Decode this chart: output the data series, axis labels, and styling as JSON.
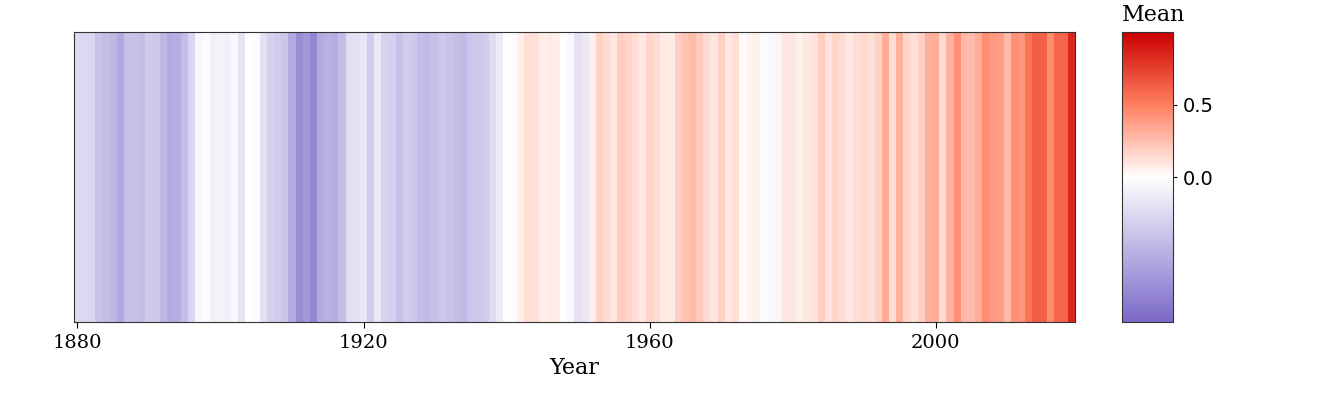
{
  "title": "",
  "xlabel": "Year",
  "ylabel": "",
  "year_start": 1880,
  "colormap_colors": [
    "#8b7ec8",
    "#ffffff",
    "#ff0000"
  ],
  "vmin": -0.5,
  "vcenter": 0.0,
  "vmax": 1.0,
  "colorbar_ticks": [
    0.0,
    0.5
  ],
  "colorbar_label": "Mean",
  "background_color": "#ffffff",
  "grid_color": "#d3d3d3",
  "xticks": [
    1880,
    1920,
    1960,
    2000
  ],
  "tick_fontsize": 14,
  "label_fontsize": 16,
  "anomalies": [
    -0.12,
    -0.13,
    -0.14,
    -0.2,
    -0.22,
    -0.24,
    -0.29,
    -0.21,
    -0.21,
    -0.22,
    -0.17,
    -0.18,
    -0.24,
    -0.28,
    -0.27,
    -0.22,
    -0.14,
    -0.03,
    -0.01,
    -0.05,
    -0.04,
    -0.05,
    -0.02,
    -0.09,
    0.0,
    -0.01,
    -0.1,
    -0.15,
    -0.17,
    -0.19,
    -0.28,
    -0.38,
    -0.34,
    -0.4,
    -0.28,
    -0.26,
    -0.27,
    -0.22,
    -0.11,
    -0.1,
    -0.08,
    -0.17,
    -0.08,
    -0.15,
    -0.16,
    -0.21,
    -0.17,
    -0.18,
    -0.22,
    -0.23,
    -0.21,
    -0.18,
    -0.2,
    -0.22,
    -0.23,
    -0.19,
    -0.18,
    -0.17,
    -0.12,
    -0.07,
    0.0,
    -0.01,
    0.07,
    0.13,
    0.12,
    0.07,
    0.08,
    0.07,
    0.0,
    -0.02,
    -0.09,
    -0.08,
    0.07,
    0.18,
    0.14,
    0.1,
    0.19,
    0.17,
    0.13,
    0.09,
    0.17,
    0.14,
    0.08,
    0.08,
    0.19,
    0.24,
    0.26,
    0.21,
    0.14,
    0.1,
    0.18,
    0.09,
    0.13,
    0.02,
    0.04,
    0.06,
    -0.01,
    -0.02,
    0.04,
    0.1,
    0.1,
    0.06,
    0.09,
    0.11,
    0.2,
    0.11,
    0.17,
    0.14,
    0.09,
    0.13,
    0.15,
    0.12,
    0.18,
    0.32,
    0.14,
    0.31,
    0.16,
    0.12,
    0.18,
    0.31,
    0.32,
    0.14,
    0.3,
    0.43,
    0.27,
    0.26,
    0.32,
    0.45,
    0.4,
    0.39,
    0.27,
    0.43,
    0.41,
    0.54,
    0.63,
    0.62,
    0.45,
    0.6,
    0.6,
    0.85
  ],
  "figsize": [
    13.44,
    4.03
  ],
  "dpi": 100
}
